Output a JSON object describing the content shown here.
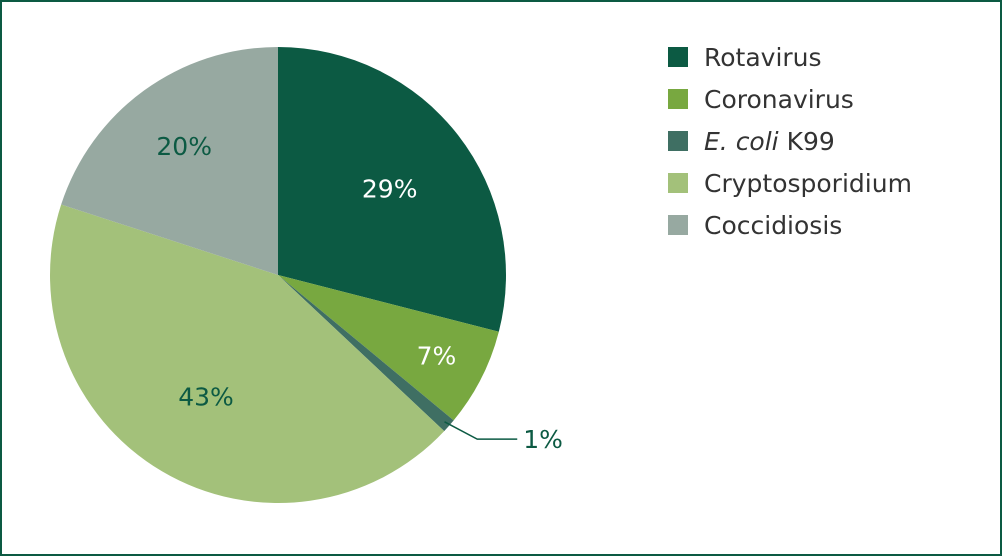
{
  "chart_data": {
    "type": "pie",
    "title": "",
    "slices": [
      {
        "name": "Rotavirus",
        "value": 29,
        "label": "29%",
        "color": "#0c5a43",
        "label_color": "#ffffff"
      },
      {
        "name": "Coronavirus",
        "value": 7,
        "label": "7%",
        "color": "#78a840",
        "label_color": "#ffffff"
      },
      {
        "name": "E. coli K99",
        "name_italic": "E. coli",
        "name_rest": " K99",
        "value": 1,
        "label": "1%",
        "color": "#3f6f63",
        "label_color": "#0c5a43"
      },
      {
        "name": "Cryptosporidium",
        "value": 43,
        "label": "43%",
        "color": "#a3c17a",
        "label_color": "#0c5a43"
      },
      {
        "name": "Coccidiosis",
        "value": 20,
        "label": "20%",
        "color": "#97a9a1",
        "label_color": "#0c5a43"
      }
    ],
    "start_angle_deg": 0,
    "direction": "clockwise",
    "legend_position": "top-right"
  },
  "style": {
    "frame_color": "#0c5a43",
    "leader_line_color": "#0c5a43"
  }
}
